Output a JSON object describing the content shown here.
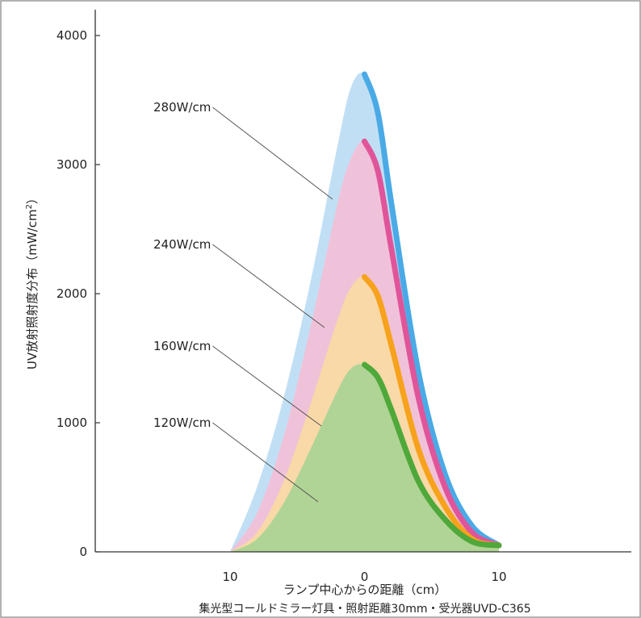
{
  "chart_data": {
    "type": "area",
    "ylabel_main": "UV放射照射度分布（mW/cm",
    "ylabel_sup": "2",
    "ylabel_end": "）",
    "xlabel": "ランプ中心からの距離（cm）",
    "caption": "集光型コールドミラー灯具・照射距離30mm・受光器UVD-C365",
    "xlim": [
      -10,
      10
    ],
    "ylim": [
      0,
      4000
    ],
    "x_ticks": [
      {
        "value": -10,
        "label": "10"
      },
      {
        "value": 0,
        "label": "0"
      },
      {
        "value": 10,
        "label": "10"
      }
    ],
    "y_ticks": [
      {
        "value": 0,
        "label": "0"
      },
      {
        "value": 1000,
        "label": "1000"
      },
      {
        "value": 2000,
        "label": "2000"
      },
      {
        "value": 3000,
        "label": "3000"
      },
      {
        "value": 4000,
        "label": "4000"
      }
    ],
    "series": [
      {
        "name": "280W/cm",
        "line_color": "#4aaae6",
        "fill_color": "#bcdcf3",
        "x": [
          -10,
          -8,
          -6,
          -4,
          -2,
          -1,
          0,
          1,
          2,
          4,
          6,
          8,
          10
        ],
        "y": [
          0,
          500,
          1200,
          2100,
          3150,
          3600,
          3700,
          3400,
          2700,
          1400,
          600,
          200,
          50
        ]
      },
      {
        "name": "240W/cm",
        "line_color": "#e0559a",
        "fill_color": "#f4bfd6",
        "x": [
          -10,
          -8,
          -6,
          -4,
          -2,
          -1,
          0,
          1,
          2,
          4,
          6,
          8,
          10
        ],
        "y": [
          0,
          300,
          900,
          1750,
          2700,
          3050,
          3180,
          2950,
          2350,
          1200,
          500,
          150,
          50
        ]
      },
      {
        "name": "160W/cm",
        "line_color": "#f7a21c",
        "fill_color": "#f9dba3",
        "x": [
          -10,
          -8,
          -6,
          -4,
          -2,
          -1,
          0,
          1,
          2,
          4,
          6,
          8,
          10
        ],
        "y": [
          0,
          150,
          550,
          1150,
          1800,
          2050,
          2130,
          1980,
          1600,
          800,
          350,
          100,
          50
        ]
      },
      {
        "name": "120W/cm",
        "line_color": "#4fa83a",
        "fill_color": "#a9d494",
        "x": [
          -10,
          -8,
          -6,
          -4,
          -2,
          -1,
          0,
          1,
          2,
          4,
          6,
          8,
          10
        ],
        "y": [
          0,
          100,
          380,
          800,
          1250,
          1420,
          1450,
          1350,
          1100,
          550,
          250,
          80,
          50
        ]
      }
    ]
  }
}
